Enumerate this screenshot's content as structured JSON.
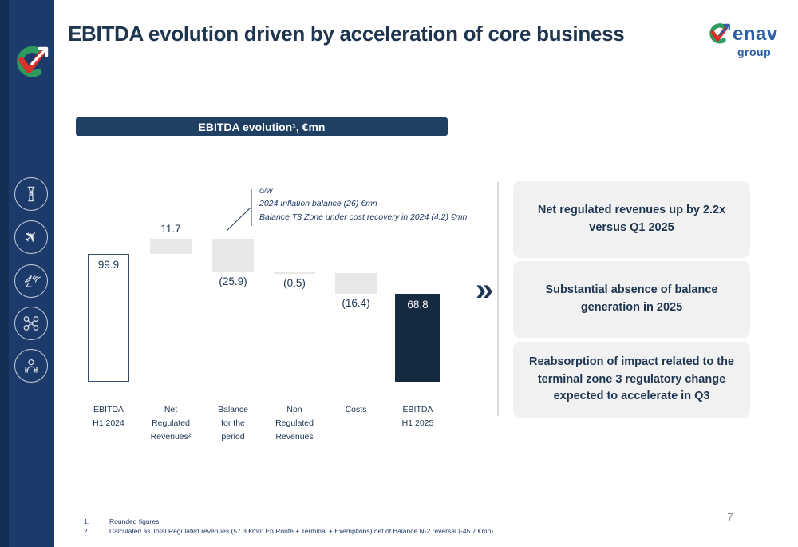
{
  "slide": {
    "title": "EBITDA evolution driven by acceleration of core business",
    "page_number": "7"
  },
  "brand": {
    "name": "enav",
    "subtext": "group",
    "colors": {
      "green": "#1e9e4f",
      "red": "#d6332a",
      "blue": "#2b5fa8"
    }
  },
  "sidebar": {
    "icons": [
      "control-tower-icon",
      "airplane-icon",
      "satellite-icon",
      "drone-icon",
      "operator-icon"
    ]
  },
  "chart_header": {
    "label": "EBITDA evolution¹, €mn"
  },
  "chart_data": {
    "type": "bar",
    "subtype": "waterfall",
    "title": "EBITDA evolution¹, €mn",
    "unit": "€mn",
    "categories": [
      "EBITDA\nH1 2024",
      "Net\nRegulated\nRevenues²",
      "Balance\nfor the\nperiod",
      "Non\nRegulated\nRevenues",
      "Costs",
      "EBITDA\nH1 2025"
    ],
    "values": [
      99.9,
      11.7,
      -25.9,
      -0.5,
      -16.4,
      68.8
    ],
    "display_labels": [
      "99.9",
      "11.7",
      "(25.9)",
      "(0.5)",
      "(16.4)",
      "68.8"
    ],
    "roles": [
      "total-start",
      "delta",
      "delta",
      "delta",
      "delta",
      "total-end"
    ],
    "label_placement": [
      "inside-top",
      "above",
      "below",
      "below",
      "below",
      "inside-top"
    ],
    "colors": {
      "start_fill": "#ffffff",
      "start_border": "#33506e",
      "delta_fill": "#e8e8e9",
      "end_fill": "#162a42"
    },
    "grid": false,
    "legend": false,
    "annotation": {
      "target_category": "Balance for the period",
      "lines": [
        "o/w",
        "2024 Inflation balance  (26) €mn",
        "Balance T3 Zone under cost recovery in 2024 (4.2) €mn"
      ]
    }
  },
  "chevron": "»",
  "callouts": [
    {
      "text": "Net regulated revenues up by 2.2x versus Q1 2025"
    },
    {
      "text": "Substantial absence of balance generation in 2025"
    },
    {
      "text": "Reabsorption of impact related to the terminal zone 3 regulatory change expected to accelerate in Q3"
    }
  ],
  "footnotes": [
    {
      "num": "1.",
      "text": "Rounded figures"
    },
    {
      "num": "2.",
      "text": "Calculated as Total Regulated revenues (57.3 €mn: En Route + Terminal + Exemptions) net of Balance N-2 reversal (-45.7 €mn)"
    }
  ]
}
